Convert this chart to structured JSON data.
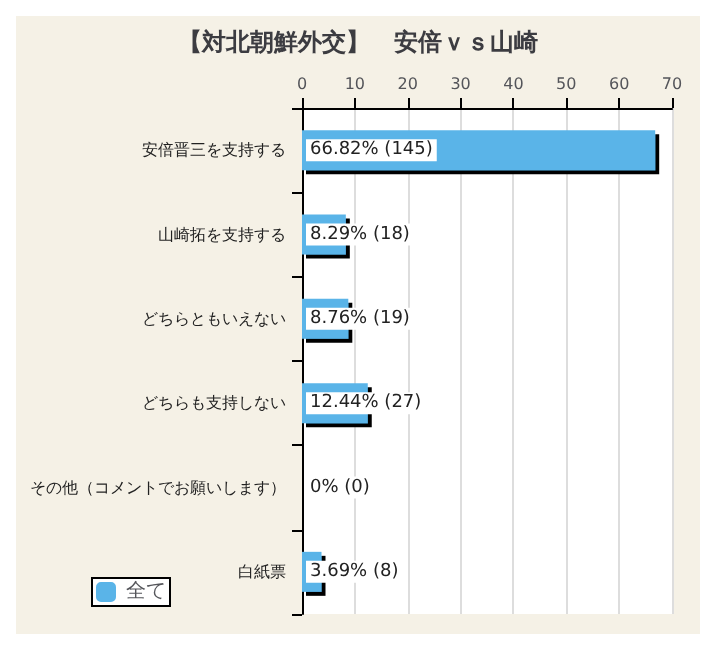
{
  "chart_data": {
    "type": "bar",
    "orientation": "horizontal",
    "title": "【対北朝鮮外交】　安倍ｖｓ山崎",
    "categories": [
      "安倍晋三を支持する",
      "山崎拓を支持する",
      "どちらともいえない",
      "どちらも支持しない",
      "その他（コメントでお願いします）",
      "白紙票"
    ],
    "series": [
      {
        "name": "全て",
        "color": "#5ab4e8",
        "values": [
          66.82,
          8.29,
          8.76,
          12.44,
          0,
          3.69
        ],
        "value_labels": [
          "66.82% (145)",
          "8.29% (18)",
          "8.76% (19)",
          "12.44% (27)",
          "0% (0)",
          "3.69% (8)"
        ]
      }
    ],
    "xlim": [
      0,
      70
    ],
    "xticks": [
      0,
      10,
      20,
      30,
      40,
      50,
      60,
      70
    ],
    "grid": "x",
    "legend": "bottom left"
  }
}
